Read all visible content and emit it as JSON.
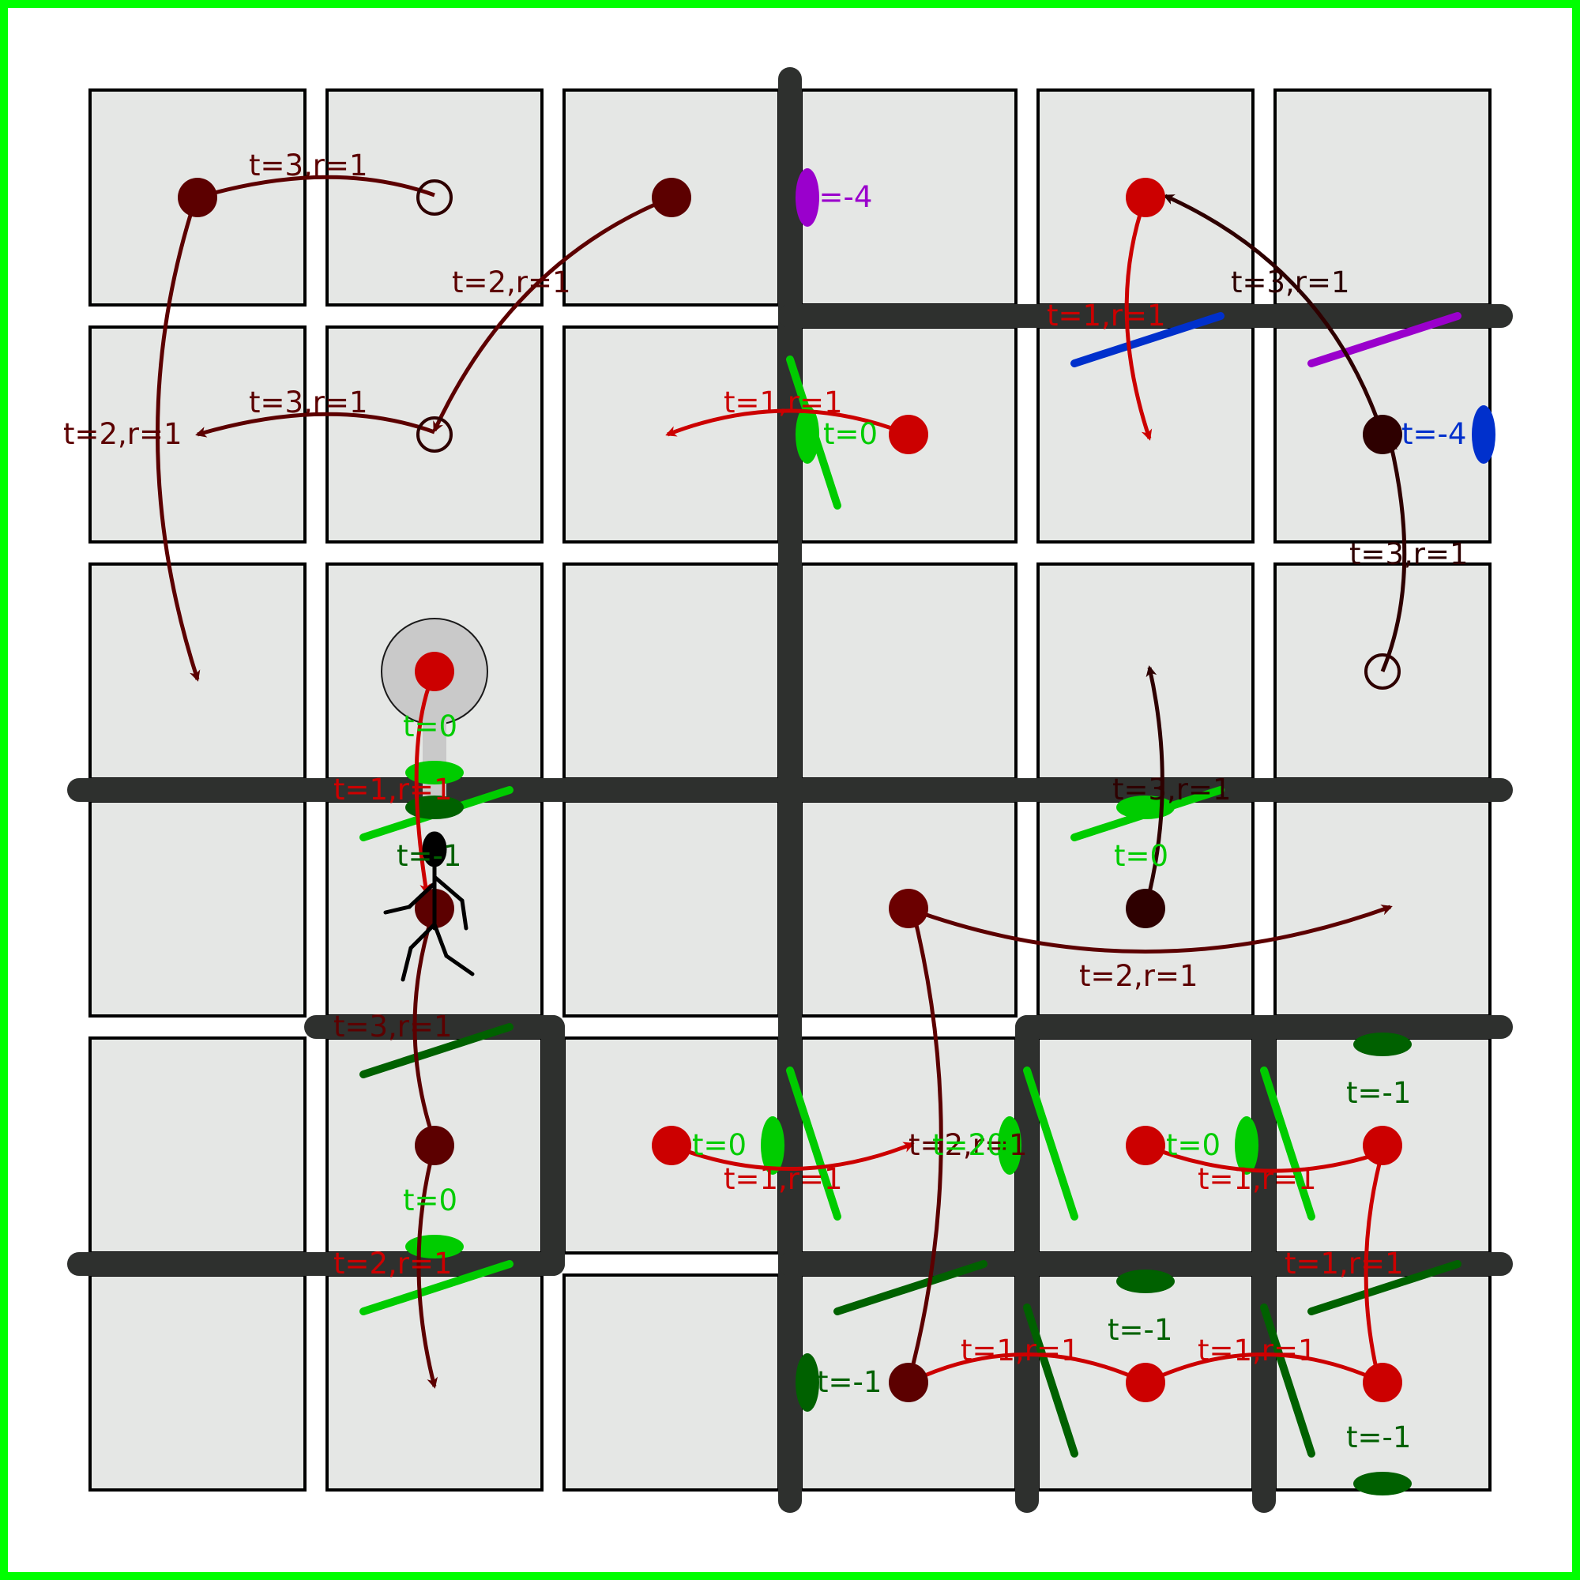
{
  "colors": {
    "border": "#00ff00",
    "tile_fill": "#e5e7e5",
    "wall": "#2e302e",
    "dark_red": "#5c0000",
    "maroon": "#6b0000",
    "very_dark": "#2e0000",
    "red": "#cc0000",
    "green": "#00cc00",
    "dark_green": "#006100",
    "purple": "#9a00cc",
    "blue": "#0030cc"
  },
  "grid": {
    "rows": 6,
    "cols": 6
  },
  "labels": {
    "t3r1": "t=3,r=1",
    "t2r1": "t=2,r=1",
    "t1r1": "t=1,r=1",
    "t0": "t=0",
    "tm1": "t=-1",
    "tm4": "t=-4",
    "t20": "t=20"
  },
  "icons": {
    "player": "stick-figure-icon",
    "target": "hollow-circle-icon",
    "dot": "filled-circle-icon",
    "arrow": "curved-arrow-icon"
  }
}
